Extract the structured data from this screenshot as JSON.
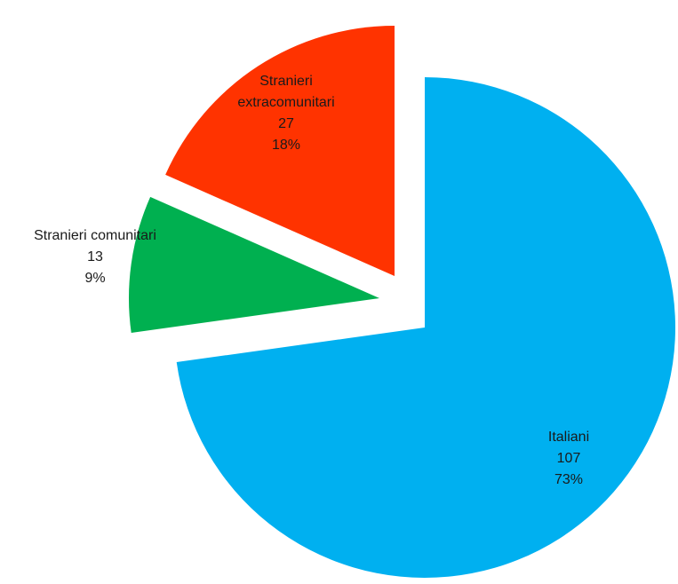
{
  "chart_data": {
    "type": "pie",
    "title": "",
    "slices": [
      {
        "label_lines": [
          "Italiani"
        ],
        "value": 107,
        "value_text": "107",
        "percent_text": "73%",
        "color": "#00B0F0"
      },
      {
        "label_lines": [
          "Stranieri comunitari"
        ],
        "value": 13,
        "value_text": "13",
        "percent_text": "9%",
        "color": "#00B050"
      },
      {
        "label_lines": [
          "Stranieri",
          "extracomunitari"
        ],
        "value": 27,
        "value_text": "27",
        "percent_text": "18%",
        "color": "#FF3300"
      }
    ],
    "legend": "none",
    "exploded": true
  }
}
